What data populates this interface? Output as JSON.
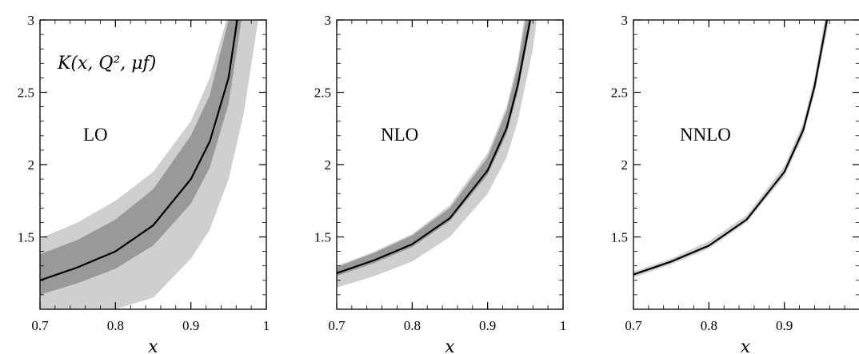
{
  "function_label": "K(x, Q², μf)",
  "colors": {
    "outer_band": "#cfcfcf",
    "inner_band": "#999999",
    "curve": "#000000",
    "frame": "#000000"
  },
  "chart_data": [
    {
      "type": "line",
      "panel_label": "LO",
      "xlabel": "x",
      "xlim": [
        0.7,
        1.0
      ],
      "ylim": [
        1.0,
        3.0
      ],
      "x_ticks": [
        "0.7",
        "0.8",
        "0.9",
        "1"
      ],
      "y_ticks": [
        "1.5",
        "2",
        "2.5",
        "3"
      ],
      "grid": false,
      "x": [
        0.7,
        0.75,
        0.8,
        0.85,
        0.9,
        0.925,
        0.95,
        0.97
      ],
      "series": [
        {
          "values": [
            1.2,
            1.29,
            1.4,
            1.58,
            1.9,
            2.16,
            2.6,
            3.3
          ]
        }
      ],
      "bands": [
        {
          "x": [
            0.7,
            0.75,
            0.8,
            0.85,
            0.9,
            0.925,
            0.95,
            0.97,
            0.995
          ],
          "lower": [
            1.0,
            1.0,
            1.0,
            1.08,
            1.35,
            1.55,
            1.9,
            2.35,
            3.2
          ],
          "upper": [
            1.49,
            1.6,
            1.75,
            1.95,
            2.3,
            2.6,
            3.05,
            3.4,
            3.4
          ]
        },
        {
          "x": [
            0.7,
            0.75,
            0.8,
            0.85,
            0.9,
            0.925,
            0.95,
            0.97
          ],
          "lower": [
            1.1,
            1.18,
            1.28,
            1.44,
            1.73,
            1.98,
            2.42,
            3.1
          ],
          "upper": [
            1.38,
            1.48,
            1.62,
            1.83,
            2.2,
            2.48,
            3.0,
            3.4
          ]
        }
      ]
    },
    {
      "type": "line",
      "panel_label": "NLO",
      "xlabel": "x",
      "xlim": [
        0.7,
        1.0
      ],
      "ylim": [
        1.0,
        3.0
      ],
      "x_ticks": [
        "0.7",
        "0.8",
        "0.9",
        "1"
      ],
      "y_ticks": [
        "1.5",
        "2",
        "2.5",
        "3"
      ],
      "grid": false,
      "x": [
        0.7,
        0.75,
        0.8,
        0.85,
        0.9,
        0.925,
        0.94,
        0.96
      ],
      "series": [
        {
          "values": [
            1.25,
            1.34,
            1.45,
            1.63,
            1.96,
            2.25,
            2.55,
            3.1
          ]
        }
      ],
      "bands": [
        {
          "x": [
            0.7,
            0.75,
            0.8,
            0.85,
            0.9,
            0.925,
            0.94,
            0.96,
            0.975
          ],
          "lower": [
            1.15,
            1.23,
            1.33,
            1.5,
            1.8,
            2.05,
            2.3,
            2.8,
            3.4
          ],
          "upper": [
            1.3,
            1.4,
            1.52,
            1.72,
            2.08,
            2.4,
            2.72,
            3.4,
            3.4
          ]
        },
        {
          "x": [
            0.7,
            0.75,
            0.8,
            0.85,
            0.9,
            0.925,
            0.94,
            0.96
          ],
          "lower": [
            1.23,
            1.32,
            1.43,
            1.61,
            1.93,
            2.21,
            2.5,
            3.05
          ],
          "upper": [
            1.29,
            1.39,
            1.51,
            1.7,
            2.05,
            2.37,
            2.68,
            3.3
          ]
        }
      ]
    },
    {
      "type": "line",
      "panel_label": "NNLO",
      "xlabel": "x",
      "xlim": [
        0.7,
        1.0
      ],
      "ylim": [
        1.0,
        3.0
      ],
      "x_ticks": [
        "0.7",
        "0.8",
        "0.9"
      ],
      "y_ticks": [
        "1.5",
        "2",
        "2.5",
        "3"
      ],
      "grid": false,
      "x": [
        0.7,
        0.75,
        0.8,
        0.85,
        0.9,
        0.925,
        0.94,
        0.96
      ],
      "series": [
        {
          "values": [
            1.24,
            1.33,
            1.44,
            1.62,
            1.95,
            2.24,
            2.54,
            3.1
          ]
        }
      ],
      "bands": [
        {
          "x": [
            0.7,
            0.75,
            0.8,
            0.85,
            0.9,
            0.925,
            0.94,
            0.96
          ],
          "lower": [
            1.22,
            1.31,
            1.42,
            1.6,
            1.92,
            2.2,
            2.49,
            3.02
          ],
          "upper": [
            1.26,
            1.35,
            1.47,
            1.65,
            1.99,
            2.29,
            2.6,
            3.2
          ]
        },
        {
          "x": [
            0.7,
            0.75,
            0.8,
            0.85,
            0.9,
            0.925,
            0.94,
            0.96
          ],
          "lower": [
            1.235,
            1.325,
            1.435,
            1.615,
            1.945,
            2.235,
            2.53,
            3.08
          ],
          "upper": [
            1.245,
            1.335,
            1.445,
            1.625,
            1.955,
            2.245,
            2.55,
            3.12
          ]
        }
      ]
    }
  ]
}
